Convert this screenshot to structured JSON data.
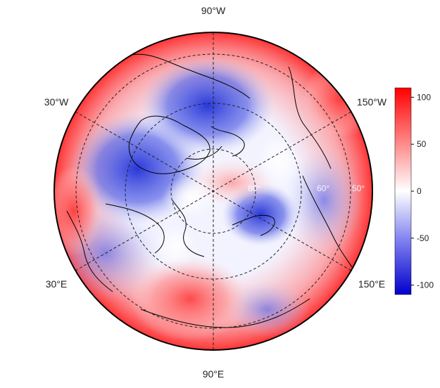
{
  "map": {
    "projection": "north-polar-stereographic",
    "longitude_labels": {
      "top": "90°W",
      "bottom": "90°E",
      "upper_left": "30°W",
      "lower_left": "30°E",
      "upper_right": "150°W",
      "lower_right": "150°E"
    },
    "latitude_labels": [
      "80°",
      "60°",
      "50°"
    ],
    "graticule": {
      "style": "dashed",
      "color": "#222222"
    },
    "coastlines": {
      "color": "#000000"
    }
  },
  "colorbar": {
    "ticks": [
      "100",
      "50",
      "0",
      "-50",
      "-100"
    ],
    "tick_values": [
      100,
      50,
      0,
      -50,
      -100
    ],
    "range": [
      -110,
      110
    ],
    "colors": {
      "max": "#ff0000",
      "mid": "#ffffff",
      "min": "#0000cc"
    }
  }
}
